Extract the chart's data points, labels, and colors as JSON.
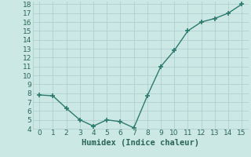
{
  "x": [
    0,
    1,
    2,
    3,
    4,
    5,
    6,
    7,
    8,
    9,
    10,
    11,
    12,
    13,
    14,
    15
  ],
  "y": [
    7.8,
    7.7,
    6.3,
    5.0,
    4.3,
    5.0,
    4.8,
    4.1,
    7.7,
    11.0,
    12.8,
    15.0,
    16.0,
    16.4,
    17.0,
    18.0
  ],
  "line_color": "#2d7a6e",
  "marker": "+",
  "marker_size": 4,
  "marker_lw": 1.2,
  "xlabel": "Humidex (Indice chaleur)",
  "xlim": [
    -0.5,
    15.5
  ],
  "ylim": [
    4,
    18.3
  ],
  "yticks": [
    4,
    5,
    6,
    7,
    8,
    9,
    10,
    11,
    12,
    13,
    14,
    15,
    16,
    17,
    18
  ],
  "xticks": [
    0,
    1,
    2,
    3,
    4,
    5,
    6,
    7,
    8,
    9,
    10,
    11,
    12,
    13,
    14,
    15
  ],
  "bg_color": "#cce8e4",
  "grid_color": "#aacccc",
  "font_color": "#2a6655",
  "linewidth": 1.0,
  "xlabel_fontsize": 7.5,
  "tick_fontsize": 6.5
}
